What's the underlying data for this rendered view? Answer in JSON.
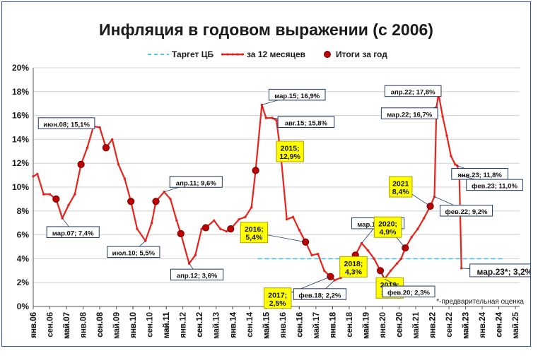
{
  "chart_data": {
    "type": "line",
    "title": "Инфляция в годовом выражении (с 2006)",
    "ylim": [
      0,
      20
    ],
    "y_ticks": [
      "0%",
      "2%",
      "4%",
      "6%",
      "8%",
      "10%",
      "12%",
      "14%",
      "16%",
      "18%",
      "20%"
    ],
    "x_ticks": [
      "янв.06",
      "май.07",
      "сен.08",
      "янв.10",
      "май.11",
      "сен.12",
      "янв.14",
      "май.15",
      "сен.16",
      "янв.18",
      "май.19",
      "сен.20",
      "янв.22",
      "май.23",
      "сен.24",
      "янв.06",
      "сен.06",
      "май.07",
      "янв.08",
      "сен.08",
      "май.09",
      "янв.10",
      "сен.10",
      "май.11",
      "янв.12",
      "сен.12",
      "май.13",
      "янв.14",
      "сен.14",
      "май.15",
      "янв.16",
      "сен.16",
      "май.17",
      "янв.18",
      "сен.18",
      "май.19",
      "янв.20",
      "сен.20",
      "май.21",
      "янв.22",
      "сен.22",
      "май.23",
      "янв.24",
      "сен.24",
      "май.25"
    ],
    "grid": true,
    "legend": {
      "position": "top",
      "entries": [
        "Таргет ЦБ",
        "за 12 месяцев",
        "Итоги за год"
      ]
    },
    "series": [
      {
        "name": "за 12 месяцев",
        "color": "#e8231c",
        "x": [
          "2006-01",
          "2006-03",
          "2006-06",
          "2006-09",
          "2006-12",
          "2007-03",
          "2007-06",
          "2007-09",
          "2007-12",
          "2008-03",
          "2008-06",
          "2008-09",
          "2008-12",
          "2009-03",
          "2009-06",
          "2009-09",
          "2009-12",
          "2010-03",
          "2010-07",
          "2010-10",
          "2010-12",
          "2011-04",
          "2011-07",
          "2011-10",
          "2011-12",
          "2012-04",
          "2012-07",
          "2012-10",
          "2012-12",
          "2013-04",
          "2013-07",
          "2013-10",
          "2013-12",
          "2014-04",
          "2014-07",
          "2014-10",
          "2014-12",
          "2015-03",
          "2015-05",
          "2015-08",
          "2015-10",
          "2015-12",
          "2016-03",
          "2016-06",
          "2016-09",
          "2016-12",
          "2017-03",
          "2017-06",
          "2017-09",
          "2017-12",
          "2018-02",
          "2018-05",
          "2018-08",
          "2018-10",
          "2018-12",
          "2019-03",
          "2019-06",
          "2019-09",
          "2019-12",
          "2020-02",
          "2020-05",
          "2020-08",
          "2020-10",
          "2020-12",
          "2021-03",
          "2021-06",
          "2021-09",
          "2021-12",
          "2022-02",
          "2022-03",
          "2022-04",
          "2022-06",
          "2022-08",
          "2022-10",
          "2022-12",
          "2023-01",
          "2023-02",
          "2023-03"
        ],
        "values": [
          10.9,
          11.1,
          9.4,
          9.4,
          9.0,
          7.4,
          8.5,
          9.4,
          11.9,
          13.3,
          15.1,
          15.0,
          13.3,
          14.0,
          11.9,
          10.7,
          8.8,
          6.5,
          5.5,
          7.0,
          8.8,
          9.6,
          9.0,
          7.2,
          6.1,
          3.6,
          4.3,
          6.5,
          6.6,
          7.2,
          6.5,
          6.3,
          6.5,
          7.3,
          7.5,
          8.3,
          11.4,
          16.9,
          15.8,
          15.8,
          15.6,
          12.9,
          7.3,
          7.5,
          6.4,
          5.4,
          4.3,
          4.4,
          3.0,
          2.5,
          2.2,
          2.4,
          3.1,
          3.5,
          4.3,
          5.3,
          4.7,
          4.0,
          3.0,
          2.3,
          3.0,
          3.6,
          4.0,
          4.9,
          5.8,
          6.5,
          7.4,
          8.4,
          9.2,
          16.7,
          17.8,
          15.9,
          14.3,
          12.6,
          11.9,
          11.8,
          11.0,
          3.2
        ]
      },
      {
        "name": "Итоги за год",
        "color": "#c00000",
        "x": [
          "2006-12",
          "2007-12",
          "2008-12",
          "2009-12",
          "2010-12",
          "2011-12",
          "2012-12",
          "2013-12",
          "2014-12",
          "2015-12",
          "2016-12",
          "2017-12",
          "2018-12",
          "2019-12",
          "2020-12",
          "2021-12"
        ],
        "values": [
          9.0,
          11.9,
          13.3,
          8.8,
          8.8,
          6.1,
          6.6,
          6.5,
          11.4,
          12.9,
          5.4,
          2.5,
          4.3,
          3.0,
          4.9,
          8.4
        ]
      },
      {
        "name": "Таргет ЦБ",
        "color": "#4fc3e8",
        "x": [
          "2015-01",
          "2024-12"
        ],
        "values": [
          4.0,
          4.0
        ]
      }
    ],
    "annotations": [
      {
        "text": "июн.08; 15,1%",
        "x": "2008-06",
        "y": 15.1,
        "style": "box"
      },
      {
        "text": "мар.07; 7,4%",
        "x": "2007-03",
        "y": 7.4,
        "style": "box"
      },
      {
        "text": "июл.10; 5,5%",
        "x": "2010-07",
        "y": 5.5,
        "style": "box"
      },
      {
        "text": "апр.11; 9,6%",
        "x": "2011-04",
        "y": 9.6,
        "style": "box"
      },
      {
        "text": "апр.12; 3,6%",
        "x": "2012-04",
        "y": 3.6,
        "style": "box"
      },
      {
        "text": "мар.15; 16,9%",
        "x": "2015-03",
        "y": 16.9,
        "style": "box"
      },
      {
        "text": "авг.15; 15,8%",
        "x": "2015-08",
        "y": 15.8,
        "style": "box"
      },
      {
        "text": "2015;\n12,9%",
        "x": "2015-12",
        "y": 12.9,
        "style": "highlight"
      },
      {
        "text": "2016;\n5,4%",
        "x": "2016-12",
        "y": 5.4,
        "style": "highlight"
      },
      {
        "text": "2017;\n2,5%",
        "x": "2017-12",
        "y": 2.5,
        "style": "highlight"
      },
      {
        "text": "фев.18; 2,2%",
        "x": "2018-02",
        "y": 2.2,
        "style": "box"
      },
      {
        "text": "2018;\n4,3%",
        "x": "2018-12",
        "y": 4.3,
        "style": "highlight"
      },
      {
        "text": "мар.19; 5,3%",
        "x": "2019-03",
        "y": 5.3,
        "style": "box"
      },
      {
        "text": "2019;\n3,0%",
        "x": "2019-12",
        "y": 3.0,
        "style": "highlight"
      },
      {
        "text": "2020;\n4,9%",
        "x": "2020-12",
        "y": 4.9,
        "style": "highlight"
      },
      {
        "text": "фев.20; 2,3%",
        "x": "2020-02",
        "y": 2.3,
        "style": "box"
      },
      {
        "text": "2021\n8,4%",
        "x": "2021-12",
        "y": 8.4,
        "style": "highlight"
      },
      {
        "text": "апр.22; 17,8%",
        "x": "2022-04",
        "y": 17.8,
        "style": "box"
      },
      {
        "text": "мар.22; 16,7%",
        "x": "2022-03",
        "y": 16.7,
        "style": "box"
      },
      {
        "text": "фев.22; 9,2%",
        "x": "2022-02",
        "y": 9.2,
        "style": "box"
      },
      {
        "text": "янв.23; 11,8%",
        "x": "2023-01",
        "y": 11.8,
        "style": "box"
      },
      {
        "text": "фев.23; 11,0%",
        "x": "2023-02",
        "y": 11.0,
        "style": "box"
      },
      {
        "text": "мар.23*; 3,2%",
        "x": "2023-03",
        "y": 3.2,
        "style": "big"
      }
    ],
    "note": "*-предварительная оценка"
  }
}
